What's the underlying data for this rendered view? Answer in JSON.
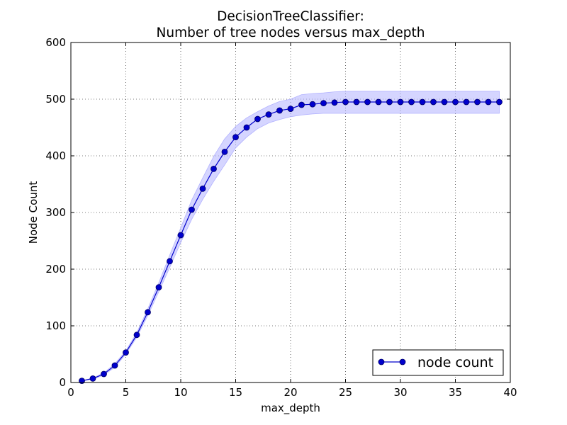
{
  "chart_data": {
    "type": "line",
    "title_line1": "DecisionTreeClassifier:",
    "title_line2": "Number of tree nodes versus max_depth",
    "xlabel": "max_depth",
    "ylabel": "Node Count",
    "xlim": [
      0,
      40
    ],
    "ylim": [
      0,
      600
    ],
    "xticks": [
      0,
      5,
      10,
      15,
      20,
      25,
      30,
      35,
      40
    ],
    "yticks": [
      0,
      100,
      200,
      300,
      400,
      500,
      600
    ],
    "grid": true,
    "legend_position": "bottom-right",
    "series": [
      {
        "name": "node count",
        "color": "#0000cc",
        "band_color": "#b3b3ff",
        "x": [
          1,
          2,
          3,
          4,
          5,
          6,
          7,
          8,
          9,
          10,
          11,
          12,
          13,
          14,
          15,
          16,
          17,
          18,
          19,
          20,
          21,
          22,
          23,
          24,
          25,
          26,
          27,
          28,
          29,
          30,
          31,
          32,
          33,
          34,
          35,
          36,
          37,
          38,
          39
        ],
        "y": [
          3,
          7,
          15,
          30,
          53,
          84,
          124,
          168,
          214,
          260,
          305,
          342,
          377,
          407,
          433,
          450,
          465,
          473,
          480,
          483,
          490,
          491,
          493,
          494,
          495,
          495,
          495,
          495,
          495,
          495,
          495,
          495,
          495,
          495,
          495,
          495,
          495,
          495,
          495
        ],
        "lower": [
          3,
          6,
          13,
          27,
          50,
          80,
          118,
          160,
          203,
          247,
          288,
          323,
          355,
          384,
          414,
          433,
          448,
          458,
          464,
          469,
          472,
          474,
          475,
          475,
          475,
          475,
          475,
          475,
          475,
          475,
          475,
          475,
          475,
          475,
          475,
          475,
          475,
          475,
          475
        ],
        "upper": [
          3,
          8,
          17,
          33,
          56,
          88,
          130,
          176,
          225,
          273,
          322,
          361,
          399,
          430,
          452,
          467,
          478,
          488,
          496,
          500,
          508,
          510,
          511,
          513,
          514,
          514,
          514,
          514,
          514,
          514,
          514,
          514,
          514,
          514,
          514,
          514,
          514,
          514,
          514
        ]
      }
    ]
  }
}
